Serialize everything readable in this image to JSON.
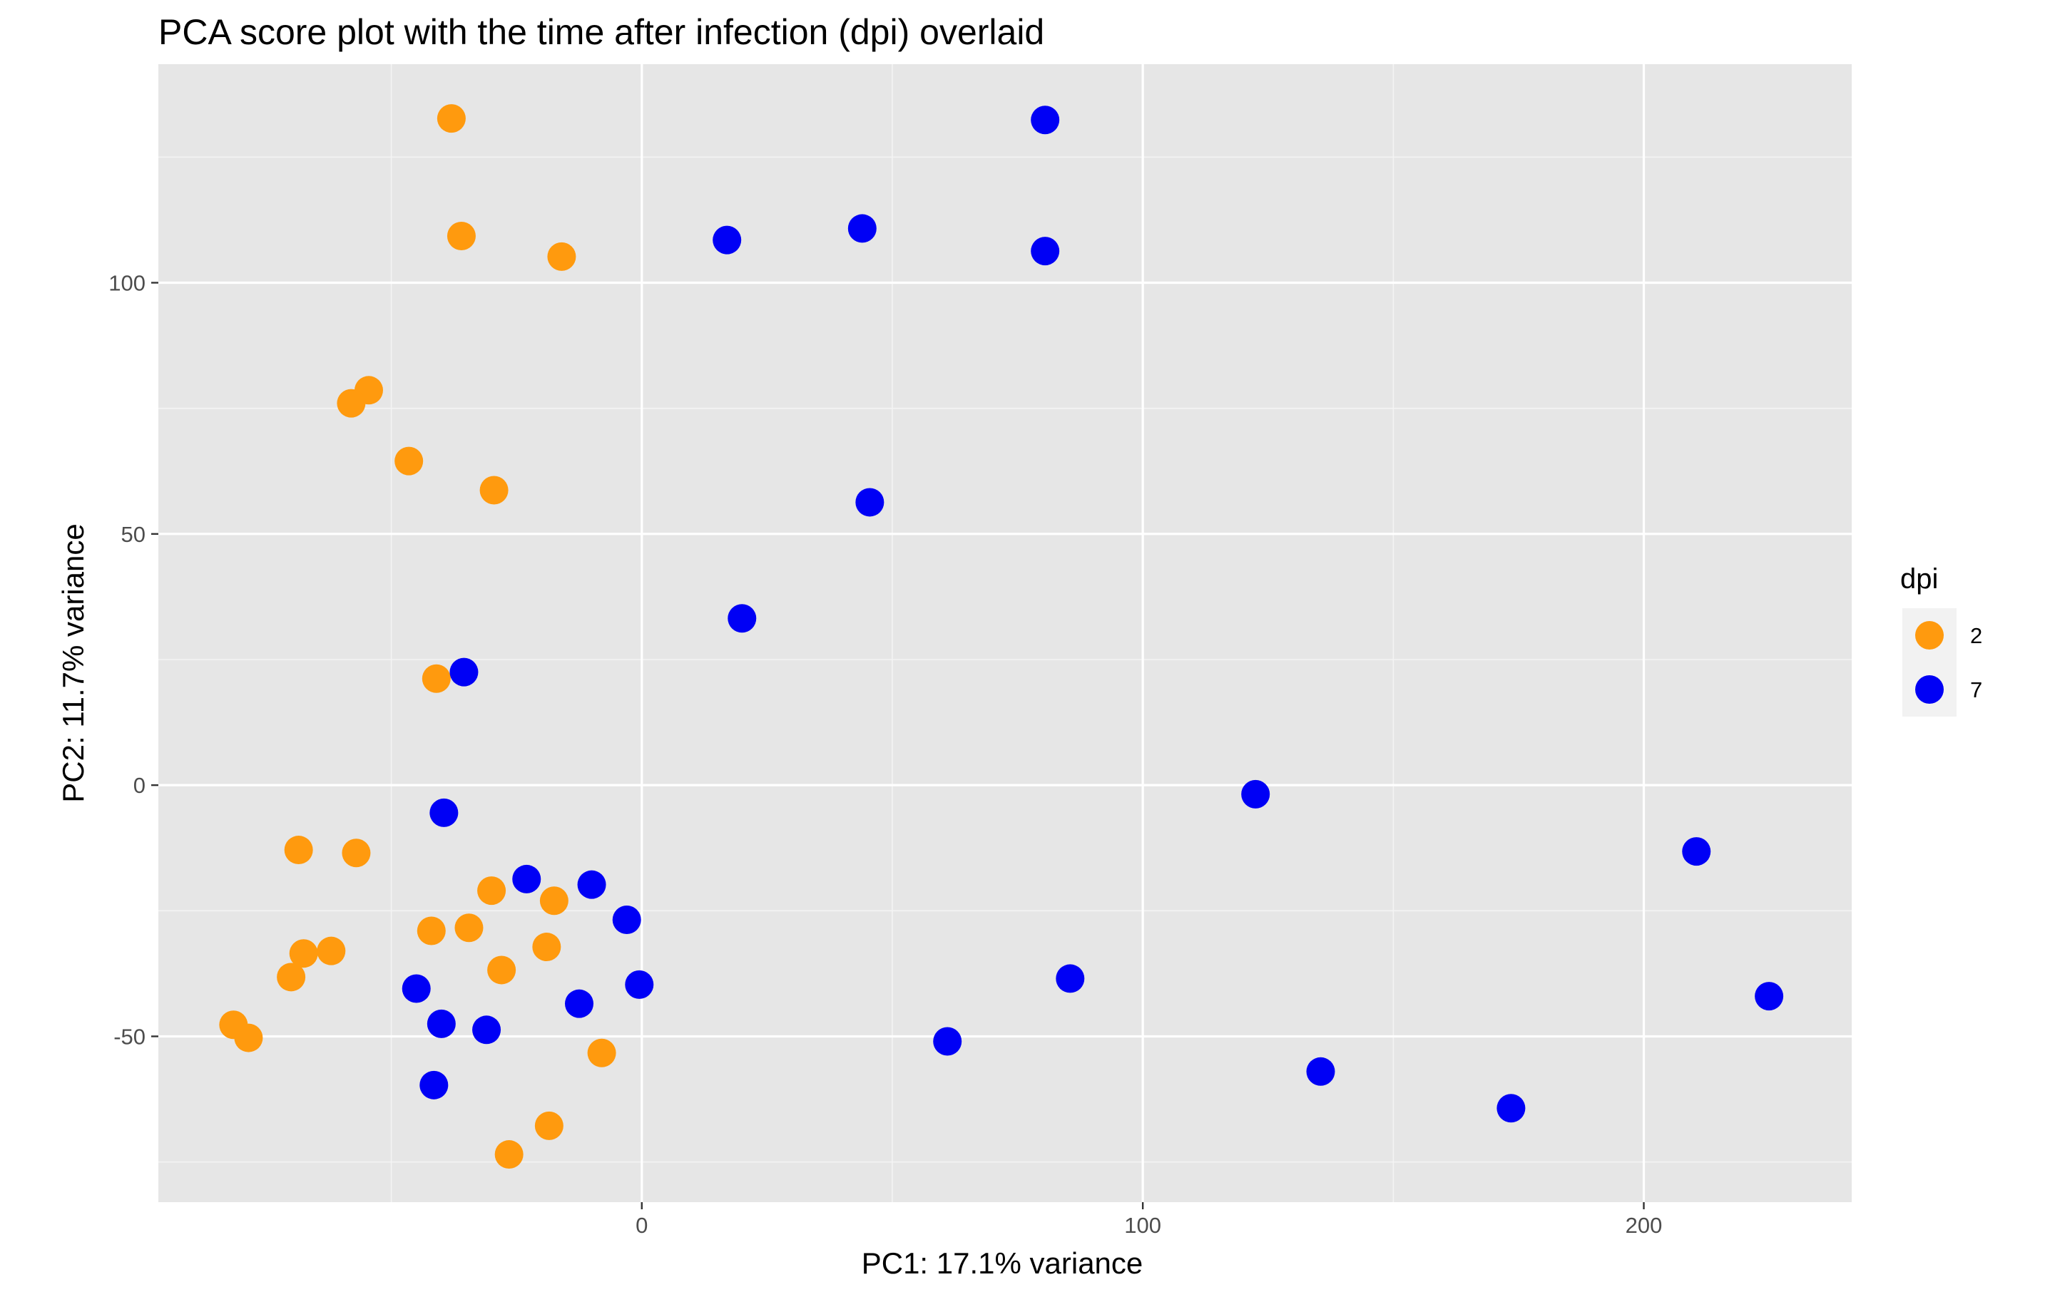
{
  "chart_data": {
    "type": "scatter",
    "title": "PCA score plot with the time after infection (dpi) overlaid",
    "xlabel": "PC1: 17.1% variance",
    "ylabel": "PC2: 11.7% variance",
    "xlim": [
      -96.5,
      241.5
    ],
    "ylim": [
      -83,
      143.5
    ],
    "x_ticks": [
      0,
      100,
      200
    ],
    "x_tick_labels": [
      "0",
      "100",
      "200"
    ],
    "y_ticks": [
      -50,
      0,
      50,
      100
    ],
    "y_tick_labels": [
      "-50",
      "0",
      "50",
      "100"
    ],
    "grid": true,
    "legend": {
      "title": "dpi",
      "position": "right"
    },
    "series": [
      {
        "name": "2",
        "color": "#ff9a0e",
        "points": [
          [
            -38,
            132.7
          ],
          [
            -36,
            109.3
          ],
          [
            -16,
            105.2
          ],
          [
            -54.5,
            78.6
          ],
          [
            -58,
            76
          ],
          [
            -46.5,
            64.5
          ],
          [
            -29.5,
            58.7
          ],
          [
            -41,
            21.2
          ],
          [
            -68.5,
            -12.9
          ],
          [
            -57,
            -13.5
          ],
          [
            -30,
            -21
          ],
          [
            -17.5,
            -23
          ],
          [
            -42,
            -29
          ],
          [
            -34.5,
            -28.4
          ],
          [
            -19,
            -32.2
          ],
          [
            -28,
            -36.8
          ],
          [
            -67.5,
            -33.5
          ],
          [
            -62,
            -33
          ],
          [
            -70,
            -38.2
          ],
          [
            -81.5,
            -47.7
          ],
          [
            -78.5,
            -50.3
          ],
          [
            -8,
            -53.3
          ],
          [
            -18.5,
            -67.8
          ],
          [
            -26.5,
            -73.5
          ]
        ]
      },
      {
        "name": "7",
        "color": "#0000f5",
        "points": [
          [
            80.5,
            132.4
          ],
          [
            80.5,
            106.3
          ],
          [
            44,
            110.8
          ],
          [
            17,
            108.5
          ],
          [
            45.5,
            56.3
          ],
          [
            20,
            33.2
          ],
          [
            -35.5,
            22.5
          ],
          [
            -39.5,
            -5.5
          ],
          [
            122.5,
            -1.8
          ],
          [
            210.5,
            -13.2
          ],
          [
            -23,
            -18.7
          ],
          [
            -10,
            -19.8
          ],
          [
            -3,
            -26.8
          ],
          [
            -45,
            -40.5
          ],
          [
            -0.5,
            -39.7
          ],
          [
            -12.5,
            -43.5
          ],
          [
            -40,
            -47.5
          ],
          [
            -31,
            -48.7
          ],
          [
            85.5,
            -38.5
          ],
          [
            225,
            -42
          ],
          [
            61,
            -51
          ],
          [
            -41.5,
            -59.7
          ],
          [
            135.5,
            -57
          ],
          [
            173.5,
            -64.3
          ]
        ]
      }
    ]
  }
}
